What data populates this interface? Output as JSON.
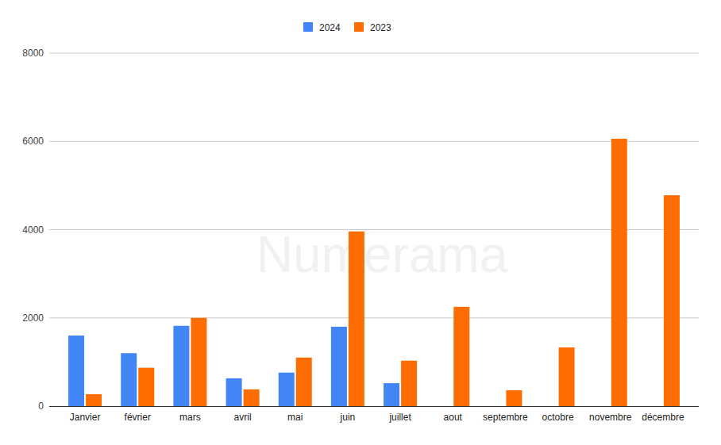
{
  "chart_data": {
    "type": "bar",
    "categories": [
      "Janvier",
      "février",
      "mars",
      "avril",
      "mai",
      "juin",
      "juillet",
      "aout",
      "septembre",
      "octobre",
      "novembre",
      "décembre"
    ],
    "series": [
      {
        "name": "2024",
        "color": "#4285f4",
        "values": [
          1600,
          1200,
          1820,
          630,
          760,
          1800,
          520,
          null,
          null,
          null,
          null,
          null
        ]
      },
      {
        "name": "2023",
        "color": "#ff6d01",
        "values": [
          270,
          870,
          2000,
          380,
          1100,
          3960,
          1030,
          2250,
          360,
          1330,
          6060,
          4780
        ]
      }
    ],
    "ylim": [
      0,
      8000
    ],
    "yticks": [
      0,
      2000,
      4000,
      6000,
      8000
    ],
    "grid": true,
    "legend": "top",
    "annotations": [
      "Numerama"
    ]
  }
}
